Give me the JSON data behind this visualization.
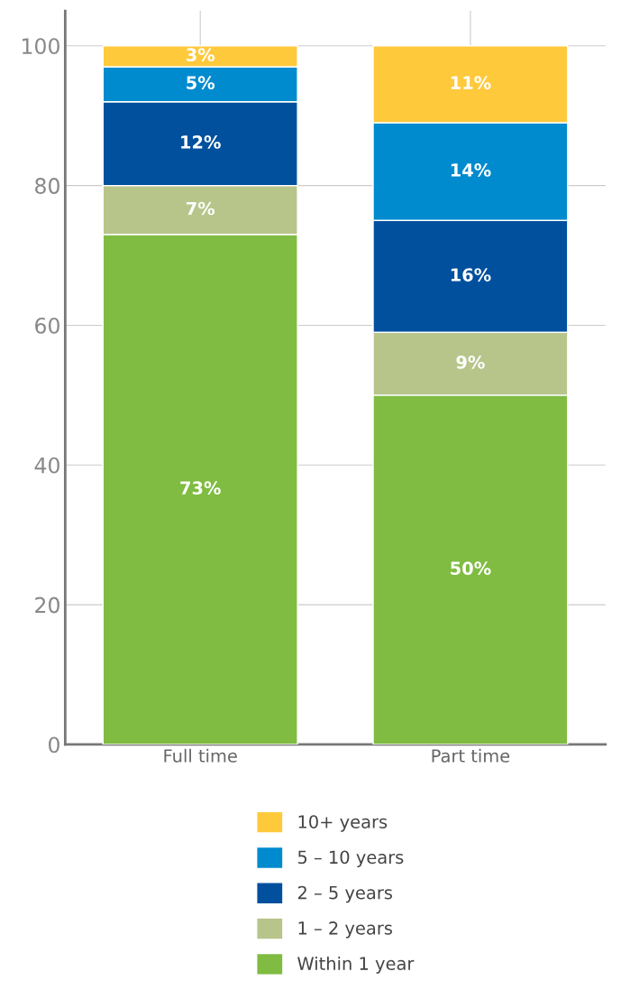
{
  "chart_data": {
    "type": "bar",
    "stacked": true,
    "categories": [
      "Full time",
      "Part time"
    ],
    "series": [
      {
        "name": "Within 1 year",
        "color": "#7fbc41",
        "values": [
          73,
          50
        ],
        "value_labels": [
          "73%",
          "50%"
        ]
      },
      {
        "name": "1 – 2 years",
        "color": "#b7c58a",
        "values": [
          7,
          9
        ],
        "value_labels": [
          "7%",
          "9%"
        ]
      },
      {
        "name": "2 – 5 years",
        "color": "#00509e",
        "values": [
          12,
          16
        ],
        "value_labels": [
          "12%",
          "16%"
        ]
      },
      {
        "name": "5 – 10 years",
        "color": "#008bcf",
        "values": [
          5,
          14
        ],
        "value_labels": [
          "5%",
          "14%"
        ]
      },
      {
        "name": "10+ years",
        "color": "#ffc93c",
        "values": [
          3,
          11
        ],
        "value_labels": [
          "3%",
          "11%"
        ]
      }
    ],
    "ylim": [
      0,
      105
    ],
    "yticks": [
      0,
      20,
      40,
      60,
      80,
      100
    ],
    "grid": true,
    "legend": "bottom"
  }
}
